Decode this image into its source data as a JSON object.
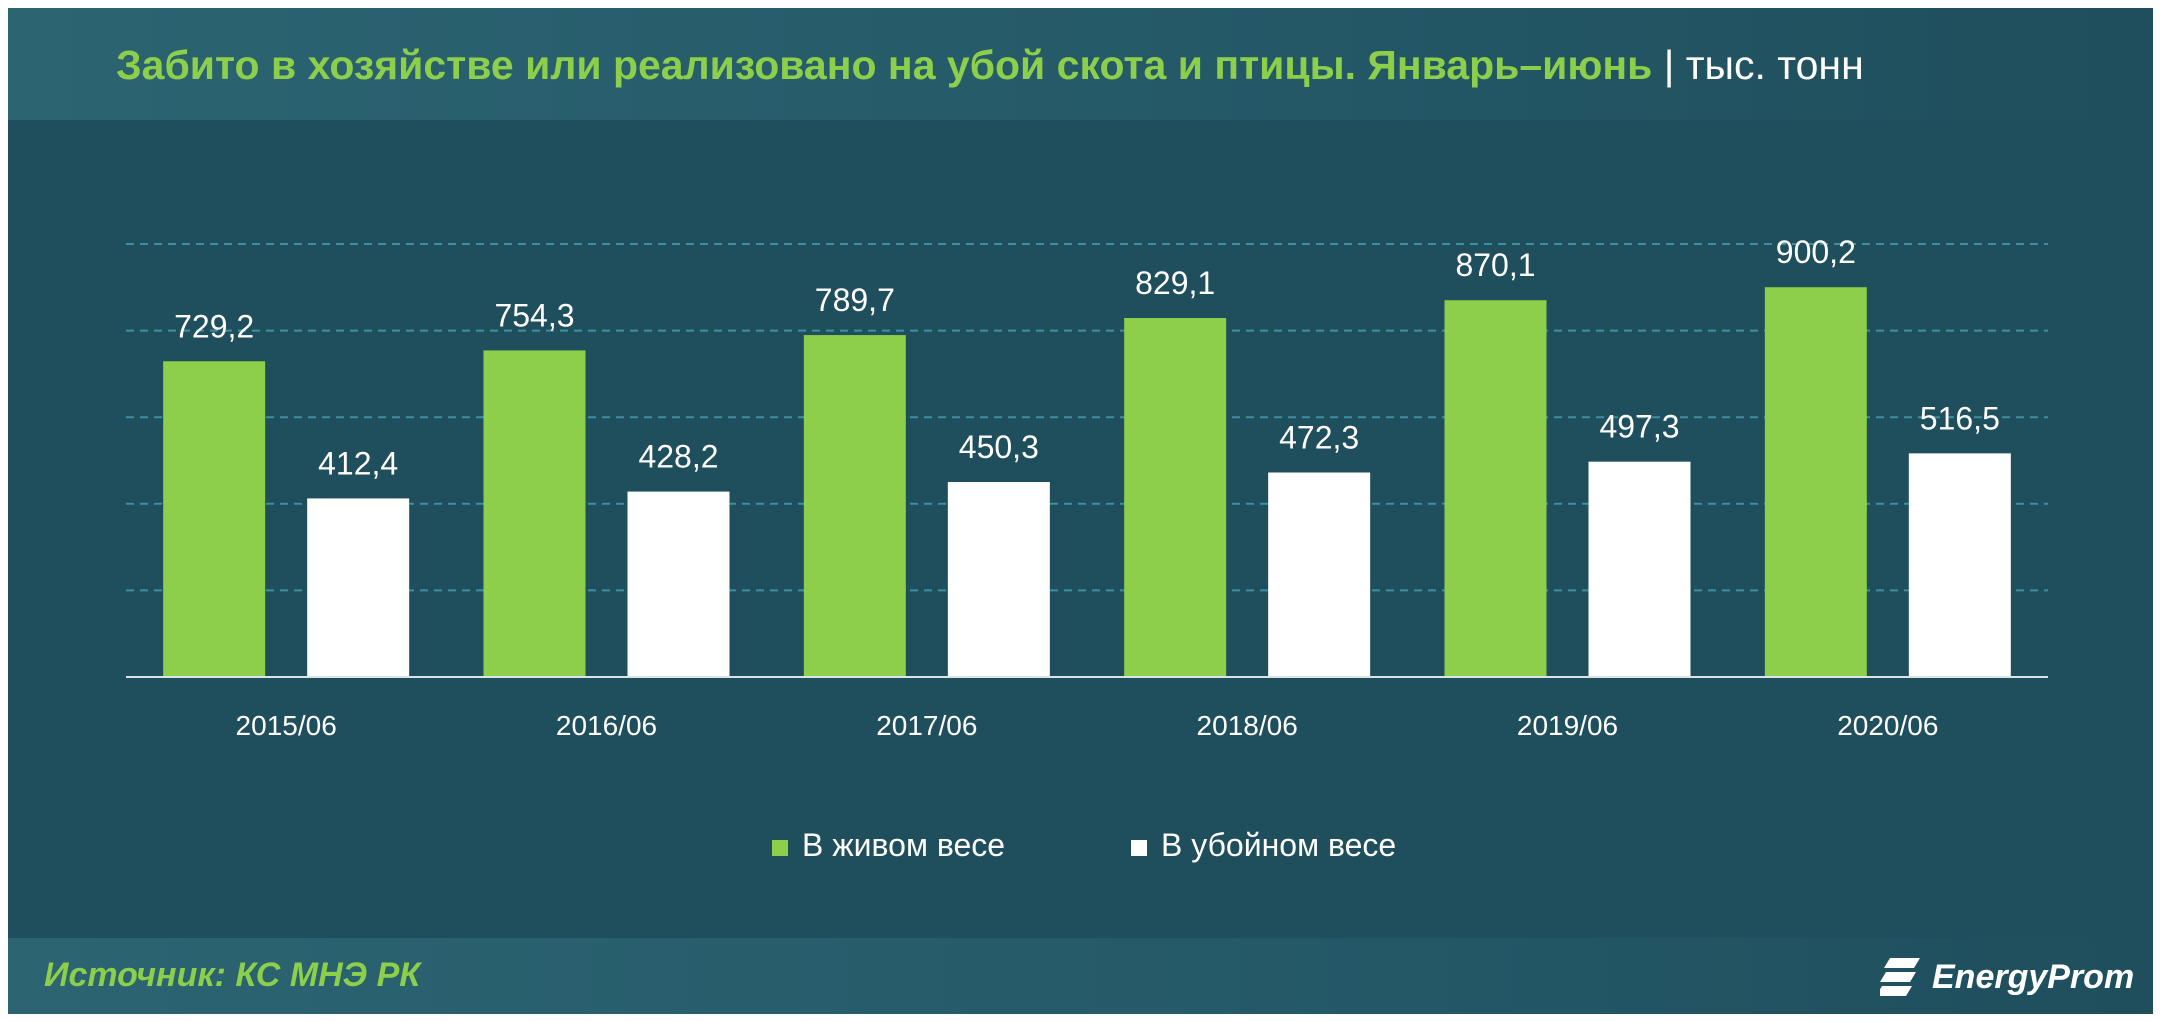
{
  "title": {
    "main": "Забито в хозяйстве или реализовано на убой скота и птицы. Январь–июнь",
    "unit": "| тыс. тонн"
  },
  "source": "Источник: КС МНЭ РК",
  "logo": {
    "name": "energyprom-logo",
    "text": "EnergyProm"
  },
  "colors": {
    "background": "#1f4e5c",
    "series_live": "#8dcf4a",
    "series_slaughter": "#ffffff",
    "title": "#8dcf4a"
  },
  "chart_data": {
    "type": "bar",
    "categories": [
      "2015/06",
      "2016/06",
      "2017/06",
      "2018/06",
      "2019/06",
      "2020/06"
    ],
    "series": [
      {
        "name": "В живом весе",
        "values": [
          729.2,
          754.3,
          789.7,
          829.1,
          870.1,
          900.2
        ],
        "labels": [
          "729,2",
          "754,3",
          "789,7",
          "829,1",
          "870,1",
          "900,2"
        ]
      },
      {
        "name": "В убойном весе",
        "values": [
          412.4,
          428.2,
          450.3,
          472.3,
          497.3,
          516.5
        ],
        "labels": [
          "412,4",
          "428,2",
          "450,3",
          "472,3",
          "497,3",
          "516,5"
        ]
      }
    ],
    "ylim": [
      0,
      1000
    ],
    "gridlines": [
      200,
      400,
      600,
      800,
      1000
    ],
    "grid": true,
    "legend": "bottom-center"
  }
}
